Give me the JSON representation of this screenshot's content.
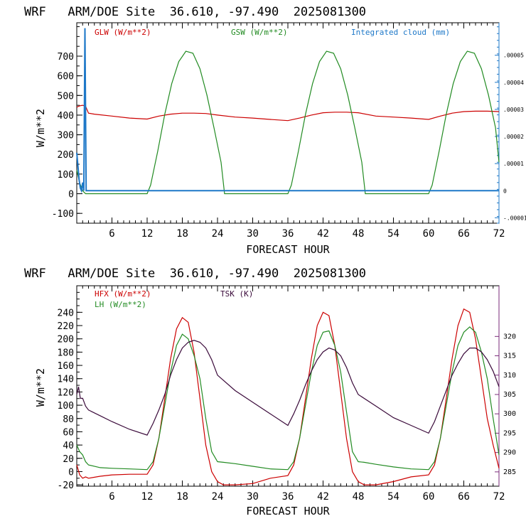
{
  "colors": {
    "axis": "#000000",
    "red": "#cc0000",
    "green": "#228b22",
    "blue": "#1e78c8",
    "purple": "#3a0a3a",
    "magenta_axis": "#7a2a7a"
  },
  "chart_data": [
    {
      "type": "line",
      "title": "WRF   ARM/DOE Site  36.610, -97.490  2025081300",
      "xlabel": "FORECAST HOUR",
      "ylabel": "W/m**2",
      "xlim": [
        0,
        72
      ],
      "ylim": [
        -150,
        870
      ],
      "xticks": [
        6,
        12,
        18,
        24,
        30,
        36,
        42,
        48,
        54,
        60,
        66,
        72
      ],
      "yticks": [
        -100,
        0,
        100,
        200,
        300,
        400,
        500,
        600,
        700
      ],
      "right_axis": {
        "label": "Integrated cloud (mm)",
        "ticks": [
          "-.00001",
          "0",
          ".00001",
          ".00002",
          ".00003",
          ".00004",
          ".00005"
        ],
        "values": [
          -1e-05,
          0,
          1e-05,
          2e-05,
          3e-05,
          4e-05,
          5e-05
        ],
        "lim": [
          -1.2e-05,
          6.2e-05
        ]
      },
      "series": [
        {
          "name": "GLW (W/m**2)",
          "color_key": "red",
          "x": [
            0,
            0.3,
            0.6,
            1,
            1.5,
            2,
            3,
            6,
            9,
            12,
            14,
            16,
            18,
            20,
            22,
            24,
            27,
            30,
            33,
            36,
            38,
            40,
            42,
            44,
            46,
            48,
            51,
            54,
            57,
            60,
            62,
            64,
            66,
            68,
            70,
            72
          ],
          "values": [
            440,
            445,
            448,
            450,
            445,
            410,
            405,
            395,
            385,
            380,
            395,
            405,
            410,
            410,
            408,
            400,
            390,
            385,
            378,
            372,
            385,
            400,
            412,
            415,
            415,
            412,
            395,
            390,
            385,
            378,
            395,
            410,
            418,
            420,
            420,
            418
          ]
        },
        {
          "name": "GSW (W/m**2)",
          "color_key": "green",
          "x": [
            0,
            0.5,
            1,
            1.5,
            2,
            12,
            12.6,
            13.8,
            15.0,
            16.2,
            17.4,
            18.6,
            19.8,
            21.0,
            22.2,
            23.4,
            24.6,
            25.2,
            26,
            36,
            36.6,
            37.8,
            39.0,
            40.2,
            41.4,
            42.6,
            43.8,
            45.0,
            46.2,
            47.4,
            48.6,
            49.2,
            50,
            60,
            60.6,
            61.8,
            63.0,
            64.2,
            65.4,
            66.6,
            67.8,
            69.0,
            70.2,
            71.4,
            72
          ],
          "values": [
            120,
            55,
            15,
            0,
            0,
            0,
            44,
            216,
            404,
            560,
            672,
            725,
            715,
            636,
            502,
            336,
            160,
            0,
            0,
            0,
            44,
            216,
            404,
            560,
            672,
            725,
            715,
            636,
            502,
            336,
            160,
            0,
            0,
            0,
            44,
            216,
            404,
            560,
            672,
            725,
            715,
            636,
            502,
            336,
            160
          ]
        },
        {
          "name": "Integrated cloud (mm)",
          "color_key": "blue",
          "x": [
            0,
            0.2,
            0.4,
            0.6,
            0.8,
            1.0,
            1.2,
            1.4,
            1.6,
            1.8,
            2.0,
            2.2,
            72
          ],
          "values": [
            1.4e-05,
            9e-06,
            4e-06,
            1e-06,
            0,
            3e-06,
            0,
            6e-05,
            0,
            0,
            0,
            0,
            0
          ]
        }
      ]
    },
    {
      "type": "line",
      "title": "WRF   ARM/DOE Site  36.610, -97.490  2025081300",
      "xlabel": "FORECAST HOUR",
      "ylabel": "W/m**2",
      "xlim": [
        0,
        72
      ],
      "ylim": [
        -22,
        280
      ],
      "xticks": [
        6,
        12,
        18,
        24,
        30,
        36,
        42,
        48,
        54,
        60,
        66,
        72
      ],
      "yticks": [
        -20,
        0,
        20,
        40,
        60,
        80,
        100,
        120,
        140,
        160,
        180,
        200,
        220,
        240
      ],
      "right_axis": {
        "label": "TSK (K)",
        "ticks": [
          "285",
          "290",
          "295",
          "300",
          "305",
          "310",
          "315",
          "320"
        ],
        "values": [
          285,
          290,
          295,
          300,
          305,
          310,
          315,
          320
        ],
        "lim": [
          281.3,
          333.1
        ]
      },
      "series": [
        {
          "name": "HFX (W/m**2)",
          "color_key": "red",
          "x": [
            0,
            0.5,
            1,
            1.5,
            2,
            4,
            6,
            9,
            12,
            13,
            14,
            15,
            16,
            17,
            18,
            19,
            20,
            21,
            22,
            23,
            24,
            25,
            27,
            30,
            33,
            36,
            37,
            38,
            39,
            40,
            41,
            42,
            43,
            44,
            45,
            46,
            47,
            48,
            49,
            51,
            54,
            57,
            60,
            61,
            62,
            63,
            64,
            65,
            66,
            67,
            68,
            69,
            70,
            71,
            72
          ],
          "values": [
            10,
            -5,
            -10,
            -8,
            -10,
            -7,
            -5,
            -4,
            -4,
            10,
            50,
            110,
            170,
            215,
            232,
            225,
            180,
            110,
            40,
            0,
            -15,
            -20,
            -20,
            -18,
            -10,
            -6,
            10,
            50,
            110,
            170,
            220,
            240,
            235,
            190,
            120,
            50,
            0,
            -15,
            -20,
            -20,
            -15,
            -8,
            -5,
            10,
            50,
            110,
            170,
            220,
            245,
            240,
            200,
            140,
            80,
            40,
            5
          ]
        },
        {
          "name": "LH (W/m**2)",
          "color_key": "green",
          "x": [
            0,
            0.5,
            1,
            1.5,
            2,
            4,
            6,
            9,
            12,
            13,
            14,
            15,
            16,
            17,
            18,
            19,
            20,
            21,
            22,
            23,
            24,
            25,
            27,
            30,
            33,
            36,
            37,
            38,
            39,
            40,
            41,
            42,
            43,
            44,
            45,
            46,
            47,
            48,
            49,
            51,
            54,
            57,
            60,
            61,
            62,
            63,
            64,
            65,
            66,
            67,
            68,
            69,
            70,
            71,
            72
          ],
          "values": [
            40,
            30,
            25,
            15,
            10,
            6,
            5,
            4,
            3,
            15,
            50,
            100,
            150,
            190,
            207,
            200,
            175,
            140,
            80,
            30,
            15,
            14,
            12,
            8,
            4,
            3,
            15,
            50,
            100,
            150,
            190,
            210,
            212,
            190,
            150,
            90,
            30,
            15,
            14,
            11,
            7,
            4,
            3,
            15,
            50,
            100,
            150,
            190,
            210,
            218,
            210,
            180,
            140,
            80,
            25
          ]
        },
        {
          "name": "TSK (K)",
          "color_key": "purple",
          "x": [
            0,
            0.3,
            0.6,
            1,
            1.5,
            2,
            4,
            6,
            9,
            12,
            13,
            14,
            15,
            16,
            17,
            18,
            19,
            20,
            21,
            22,
            23,
            24,
            27,
            30,
            33,
            36,
            37,
            38,
            39,
            40,
            41,
            42,
            43,
            44,
            45,
            46,
            47,
            48,
            51,
            54,
            57,
            60,
            61,
            62,
            63,
            64,
            65,
            66,
            67,
            68,
            69,
            70,
            71,
            72
          ],
          "values": [
            305,
            307,
            304,
            304,
            302,
            301,
            299.5,
            298,
            296,
            294.5,
            297.5,
            301,
            305,
            310,
            314,
            317,
            318.5,
            319,
            318.5,
            317,
            314,
            310,
            306,
            303,
            300,
            297,
            300,
            303.5,
            307.5,
            311,
            314,
            316,
            317,
            316.5,
            315,
            312,
            308,
            305,
            302,
            299,
            297,
            295,
            298,
            302,
            306,
            310,
            313,
            315.5,
            317,
            317,
            316,
            314,
            311,
            307
          ]
        }
      ]
    }
  ]
}
